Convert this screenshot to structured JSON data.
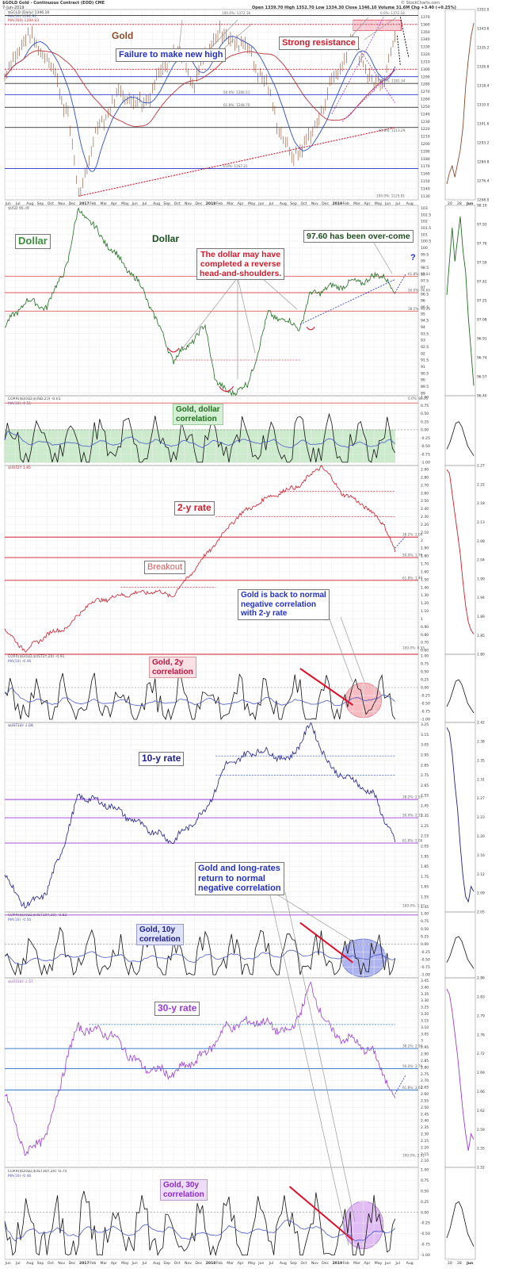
{
  "header": {
    "symbol": "$GOLD Gold - Continuous Contract (EOD) CME",
    "date": "7-Jun-2019",
    "quote": "Open 1339.70  High 1352.70  Low 1334.30  Close 1346.10  Volume 31.6M  Chg +3.40 (+0.25%)",
    "source": "© StockCharts.com"
  },
  "chart_data": [
    {
      "id": "gold",
      "type": "line",
      "legend": [
        "$GOLD (Daily) 1346.10",
        "MA(50) 1291.91",
        "MA(200) 1284.83"
      ],
      "y_ticks": [
        1130,
        1140,
        1150,
        1160,
        1170,
        1180,
        1190,
        1200,
        1210,
        1220,
        1230,
        1240,
        1250,
        1260,
        1270,
        1280,
        1290,
        1300,
        1310,
        1320,
        1330,
        1340,
        1350,
        1360,
        1370
      ],
      "ylim": [
        1125,
        1380
      ],
      "last_value": "1346.10",
      "x": [
        "2016-05",
        "2016-07",
        "2016-09",
        "2016-11",
        "2016-12",
        "2017-02",
        "2017-04",
        "2017-06",
        "2017-09",
        "2017-11",
        "2018-01",
        "2018-04",
        "2018-06",
        "2018-08",
        "2018-10",
        "2018-12",
        "2019-02",
        "2019-04",
        "2019-05",
        "2019-06"
      ],
      "values": [
        1290,
        1345,
        1320,
        1240,
        1130,
        1230,
        1270,
        1250,
        1330,
        1280,
        1350,
        1330,
        1270,
        1180,
        1210,
        1280,
        1340,
        1275,
        1295,
        1346
      ],
      "fib_levels": [
        "100.0%: 1372.18",
        "0.0%: 1372.18",
        "38.2%: 1281.34",
        "50.0%: 1266.51",
        "61.8%: 1248.70",
        "61.8%: 1213.29",
        "0.0%: 1167.21",
        "100.0%: 1125.81"
      ],
      "annotations": [
        "Gold",
        "Failure to make new high",
        "Strong resistance"
      ]
    },
    {
      "id": "dollar",
      "type": "line",
      "legend": [
        "$USD 96.49"
      ],
      "y_ticks": [
        89,
        89.5,
        90,
        90.5,
        91,
        91.5,
        92,
        92.5,
        93,
        93.5,
        94,
        94.5,
        95,
        95.5,
        96,
        96.5,
        97,
        97.5,
        98,
        98.5,
        99,
        99.5,
        100,
        100.5,
        101,
        101.5,
        102,
        102.5,
        103
      ],
      "ylim": [
        88.8,
        103.2
      ],
      "x": [
        "2016-05",
        "2016-07",
        "2016-09",
        "2016-11",
        "2016-12",
        "2017-03",
        "2017-06",
        "2017-09",
        "2017-12",
        "2018-01",
        "2018-02",
        "2018-04",
        "2018-06",
        "2018-09",
        "2018-10",
        "2018-12",
        "2019-03",
        "2019-05",
        "2019-06"
      ],
      "values": [
        94,
        96,
        95.5,
        99,
        103,
        100,
        97,
        91.5,
        94,
        90,
        89,
        89.5,
        95,
        94,
        96.5,
        97,
        97.5,
        98,
        96.5
      ],
      "fib_levels": [
        "61.8%: 97.84",
        "50.0%: 96.60",
        "38.2%: 95.20",
        "0.0%: 88.25"
      ],
      "annotations": [
        "Dollar",
        "Dollar",
        "The dollar may have",
        "completed a reverse",
        "head-and-shoulders.",
        "97.60 has been over-come",
        "?"
      ]
    },
    {
      "id": "corr-gold-usd",
      "type": "line",
      "legend": [
        "CORR($GOLD,$USD,20) -0.81",
        "MA(50) -0.51"
      ],
      "y_ticks": [
        -1.0,
        -0.75,
        -0.5,
        -0.25,
        0.0,
        0.25,
        0.5,
        0.75,
        1.0
      ],
      "ylim": [
        -1.1,
        1.05
      ],
      "last_value": "-0.81",
      "annotations": [
        "Gold, dollar",
        "correlation"
      ]
    },
    {
      "id": "ust2y",
      "type": "line",
      "legend": [
        "$UST2Y 1.85"
      ],
      "y_ticks": [
        0.6,
        0.7,
        0.8,
        0.9,
        1.0,
        1.1,
        1.2,
        1.3,
        1.4,
        1.5,
        1.6,
        1.7,
        1.8,
        1.9,
        2.0,
        2.1,
        2.2,
        2.3,
        2.4,
        2.5,
        2.6,
        2.7,
        2.8,
        2.9
      ],
      "ylim": [
        0.55,
        2.95
      ],
      "last_value": "1.85",
      "x": [
        "2016-05",
        "2016-07",
        "2016-09",
        "2016-11",
        "2017-01",
        "2017-04",
        "2017-07",
        "2017-09",
        "2017-12",
        "2018-03",
        "2018-06",
        "2018-09",
        "2018-11",
        "2019-01",
        "2019-03",
        "2019-05",
        "2019-06"
      ],
      "values": [
        0.85,
        0.6,
        0.8,
        0.9,
        1.2,
        1.3,
        1.35,
        1.3,
        1.8,
        2.3,
        2.55,
        2.7,
        2.95,
        2.6,
        2.45,
        2.2,
        1.85
      ],
      "fib_levels": [
        "38.2%: 2.04",
        "50.0%: 1.78",
        "61.8%: 1.49",
        "100.0%: 0.55"
      ],
      "annotations": [
        "2-y rate",
        "Breakout",
        "Gold is back to normal",
        "negative correlation",
        "with 2-y rate"
      ]
    },
    {
      "id": "corr-gold-2y",
      "type": "line",
      "legend": [
        "CORR($GOLD,$UST2Y,20) -0.91",
        "MA(50) -0.46"
      ],
      "y_ticks": [
        -1.0,
        -0.75,
        -0.5,
        -0.25,
        0.0,
        0.25,
        0.5,
        0.75,
        1.0
      ],
      "ylim": [
        -1.1,
        1.05
      ],
      "last_value": "-0.91",
      "annotations": [
        "Gold, 2y",
        "correlation"
      ]
    },
    {
      "id": "ust10y",
      "type": "line",
      "legend": [
        "$UST10Y 2.09"
      ],
      "y_ticks": [
        1.45,
        1.5,
        1.55,
        1.6,
        1.65,
        1.7,
        1.75,
        1.8,
        1.85,
        1.9,
        1.95,
        2.0,
        2.05,
        2.1,
        2.15,
        2.2,
        2.25,
        2.3,
        2.35,
        2.4,
        2.45,
        2.5,
        2.55,
        2.6,
        2.65,
        2.7,
        2.75,
        2.8,
        2.85,
        2.9,
        2.95,
        3.0,
        3.05,
        3.1,
        3.15,
        3.2,
        3.25
      ],
      "ylim": [
        1.4,
        3.27
      ],
      "last_value": "2.09",
      "x": [
        "2016-05",
        "2016-07",
        "2016-09",
        "2016-11",
        "2016-12",
        "2017-03",
        "2017-06",
        "2017-09",
        "2017-12",
        "2018-02",
        "2018-05",
        "2018-08",
        "2018-10",
        "2018-12",
        "2019-02",
        "2019-04",
        "2019-06"
      ],
      "values": [
        1.75,
        1.45,
        1.6,
        2.2,
        2.55,
        2.45,
        2.25,
        2.1,
        2.4,
        2.85,
        3.0,
        2.9,
        3.25,
        2.8,
        2.7,
        2.55,
        2.09
      ],
      "fib_levels": [
        "38.2%: 2.51",
        "50.0%: 2.33",
        "61.8%: 2.08",
        "100.0%: 1.37"
      ],
      "annotations": [
        "10-y rate",
        "Gold and long-rates",
        "return to  normal",
        "negative correlation"
      ]
    },
    {
      "id": "corr-gold-10y",
      "type": "line",
      "legend": [
        "CORR($GOLD,$UST10Y,20) -0.82",
        "MA(50) -0.50"
      ],
      "y_ticks": [
        -1.0,
        -0.75,
        -0.5,
        -0.25,
        0.0,
        0.25,
        0.5,
        0.75,
        1.0
      ],
      "ylim": [
        -1.1,
        1.05
      ],
      "last_value": "-0.82",
      "annotations": [
        "Gold, 10y",
        "correlation"
      ]
    },
    {
      "id": "ust30y",
      "type": "line",
      "legend": [
        "$UST30Y 2.57"
      ],
      "y_ticks": [
        2.1,
        2.15,
        2.2,
        2.25,
        2.3,
        2.35,
        2.4,
        2.45,
        2.5,
        2.55,
        2.6,
        2.65,
        2.7,
        2.75,
        2.8,
        2.85,
        2.9,
        2.95,
        3.0,
        3.05,
        3.1,
        3.15,
        3.2,
        3.25,
        3.3,
        3.35,
        3.4,
        3.45
      ],
      "ylim": [
        2.05,
        3.47
      ],
      "last_value": "2.57",
      "x": [
        "2016-05",
        "2016-07",
        "2016-09",
        "2016-11",
        "2016-12",
        "2017-03",
        "2017-06",
        "2017-09",
        "2017-12",
        "2018-02",
        "2018-05",
        "2018-08",
        "2018-10",
        "2018-12",
        "2019-02",
        "2019-04",
        "2019-06"
      ],
      "values": [
        2.6,
        2.15,
        2.3,
        2.9,
        3.1,
        3.05,
        2.8,
        2.75,
        2.9,
        3.1,
        3.15,
        3.05,
        3.4,
        3.05,
        3.0,
        2.9,
        2.57
      ],
      "fib_levels": [
        "38.2%: 2.94",
        "50.0%: 2.79",
        "61.8%: 2.63",
        "100.0%: 2.11"
      ],
      "annotations": [
        "30-y rate"
      ]
    },
    {
      "id": "corr-gold-30y",
      "type": "line",
      "legend": [
        "CORR($GOLD,$UST30Y,20) -0.75",
        "MA(50) -0.46"
      ],
      "y_ticks": [
        -1.0,
        -0.75,
        -0.5,
        -0.25,
        0.0,
        0.25,
        0.5,
        0.75,
        1.0
      ],
      "ylim": [
        -1.1,
        1.05
      ],
      "last_value": "-0.75",
      "annotations": [
        "Gold, 30y",
        "correlation"
      ]
    }
  ],
  "x_axis_labels": [
    "Jun",
    "Jul",
    "Aug",
    "Sep",
    "Oct",
    "Nov",
    "Dec",
    "2017",
    "Feb",
    "Mar",
    "Apr",
    "May",
    "Jun",
    "Jul",
    "Aug",
    "Sep",
    "Oct",
    "Nov",
    "Dec",
    "2018",
    "Feb",
    "Mar",
    "Apr",
    "May",
    "Jun",
    "Jul",
    "Aug",
    "Sep",
    "Oct",
    "Nov",
    "Dec",
    "2019",
    "Feb",
    "Mar",
    "Apr",
    "May",
    "Jun",
    "Jul",
    "Aug"
  ],
  "side_x_labels": [
    "20",
    "28",
    "Jun"
  ],
  "colors": {
    "gold": "#8b4a2a",
    "dollar": "#1f6e1f",
    "ust2y": "#d21a2a",
    "ust10y": "#20208c",
    "ust30y": "#9a3cd6",
    "corr": "#111111",
    "ma": "#4a5ac8"
  }
}
